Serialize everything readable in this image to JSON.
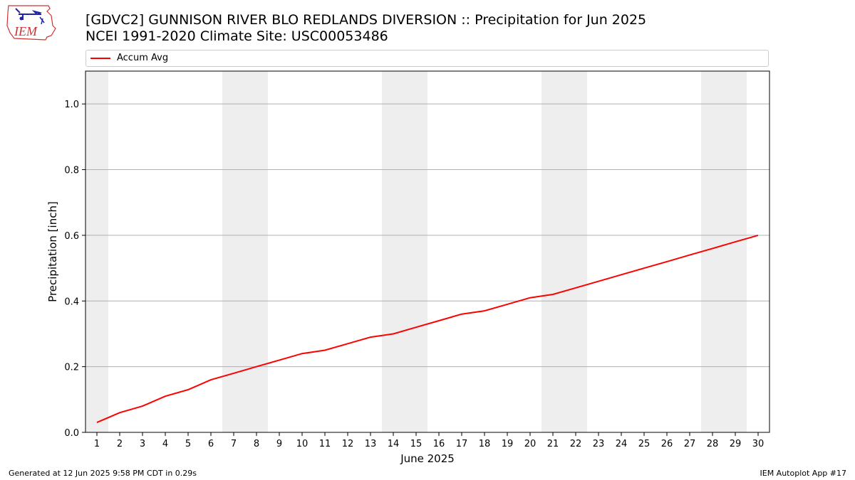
{
  "logo": {
    "text": "IEM",
    "icon": "iem-logo-icon"
  },
  "title": {
    "line1": "[GDVC2] GUNNISON RIVER BLO REDLANDS DIVERSION :: Precipitation for Jun 2025",
    "line2": "NCEI 1991-2020 Climate Site: USC00053486"
  },
  "footer": {
    "left": "Generated at 12 Jun 2025 9:58 PM CDT in 0.29s",
    "right": "IEM Autoplot App #17"
  },
  "colors": {
    "series": "#ff0000",
    "weekend_band": "#eeeeee",
    "grid": "#b0b0b0"
  },
  "chart_data": {
    "type": "line",
    "xlabel": "June 2025",
    "ylabel": "Precipitation [inch]",
    "xlim": [
      0.5,
      30.5
    ],
    "ylim": [
      0,
      1.1
    ],
    "y_ticks": [
      0.0,
      0.2,
      0.4,
      0.6,
      0.8,
      1.0
    ],
    "y_tick_labels": [
      "0.0",
      "0.2",
      "0.4",
      "0.6",
      "0.8",
      "1.0"
    ],
    "x_ticks": [
      1,
      2,
      3,
      4,
      5,
      6,
      7,
      8,
      9,
      10,
      11,
      12,
      13,
      14,
      15,
      16,
      17,
      18,
      19,
      20,
      21,
      22,
      23,
      24,
      25,
      26,
      27,
      28,
      29,
      30
    ],
    "grid": "horizontal",
    "legend_position": "top",
    "shaded_day_ranges": [
      [
        0.5,
        1.5
      ],
      [
        6.5,
        8.5
      ],
      [
        13.5,
        15.5
      ],
      [
        20.5,
        22.5
      ],
      [
        27.5,
        29.5
      ]
    ],
    "series": [
      {
        "name": "Accum Avg",
        "x": [
          1,
          2,
          3,
          4,
          5,
          6,
          7,
          8,
          9,
          10,
          11,
          12,
          13,
          14,
          15,
          16,
          17,
          18,
          19,
          20,
          21,
          22,
          23,
          24,
          25,
          26,
          27,
          28,
          29,
          30
        ],
        "values": [
          0.03,
          0.06,
          0.08,
          0.11,
          0.13,
          0.16,
          0.18,
          0.2,
          0.22,
          0.24,
          0.25,
          0.27,
          0.29,
          0.3,
          0.32,
          0.34,
          0.36,
          0.37,
          0.39,
          0.41,
          0.42,
          0.44,
          0.46,
          0.48,
          0.5,
          0.52,
          0.54,
          0.56,
          0.58,
          0.6
        ]
      }
    ]
  }
}
